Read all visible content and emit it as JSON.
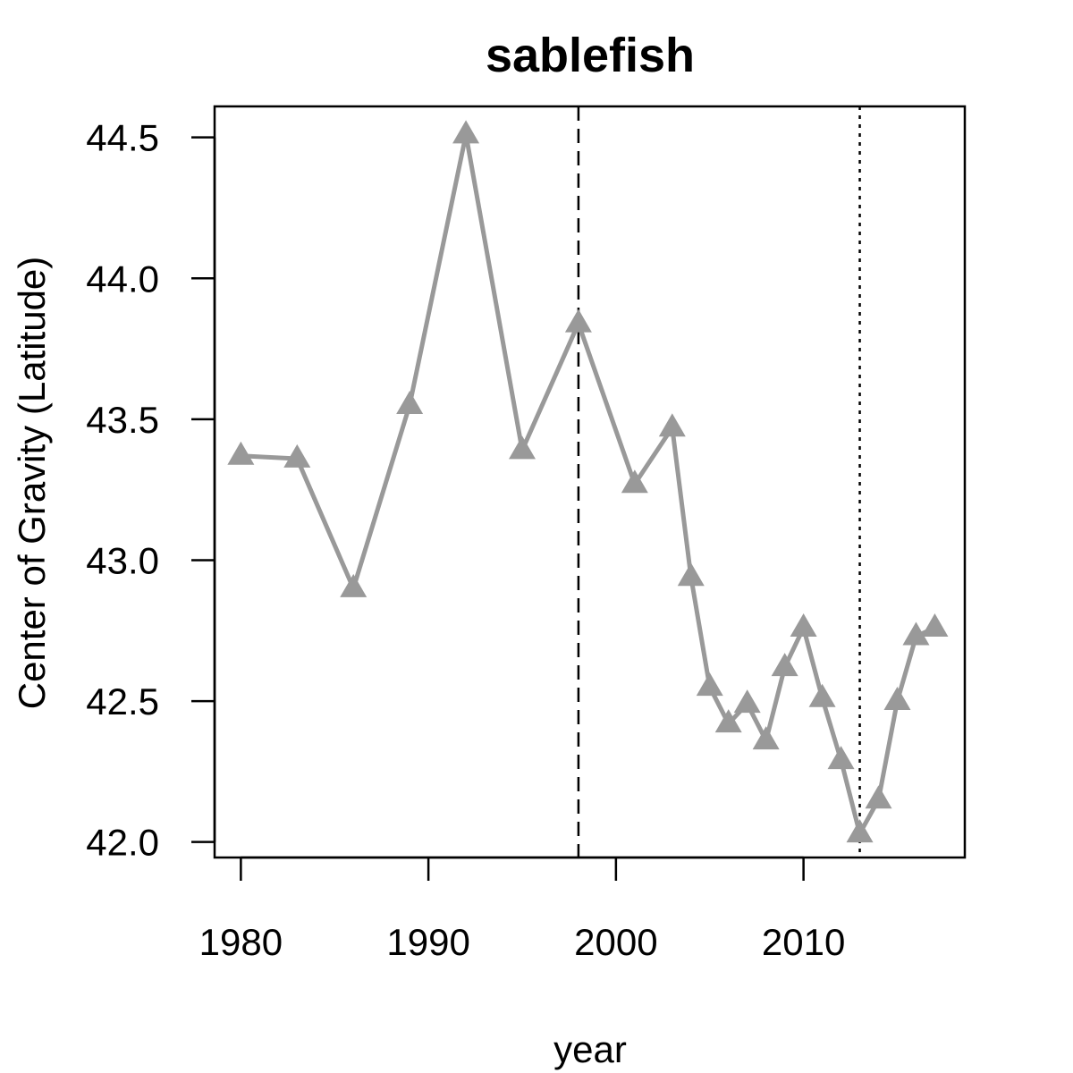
{
  "chart_data": {
    "type": "line",
    "title": "sablefish",
    "xlabel": "year",
    "ylabel": "Center of Gravity (Latitude)",
    "xlim": [
      1978.6,
      2018.6
    ],
    "ylim": [
      41.945,
      44.61
    ],
    "xticks": [
      1980,
      1990,
      2000,
      2010
    ],
    "yticks": [
      "42.0",
      "42.5",
      "43.0",
      "43.5",
      "44.0",
      "44.5"
    ],
    "grid": false,
    "series": [
      {
        "color": "#999999",
        "marker": "triangle",
        "x": [
          1980,
          1983,
          1986,
          1989,
          1992,
          1995,
          1998,
          2001,
          2003,
          2004,
          2005,
          2006,
          2007,
          2008,
          2009,
          2010,
          2011,
          2012,
          2013,
          2014,
          2015,
          2016,
          2017
        ],
        "y": [
          43.37,
          43.36,
          42.9,
          43.55,
          44.51,
          43.39,
          43.84,
          43.27,
          43.47,
          42.94,
          42.55,
          42.42,
          42.49,
          42.36,
          42.62,
          42.76,
          42.51,
          42.29,
          42.03,
          42.15,
          42.5,
          42.73,
          42.76
        ]
      }
    ],
    "reference_lines": [
      {
        "x": 1998,
        "style": "dashed",
        "color": "#000000"
      },
      {
        "x": 2013,
        "style": "dotted",
        "color": "#000000"
      }
    ]
  }
}
